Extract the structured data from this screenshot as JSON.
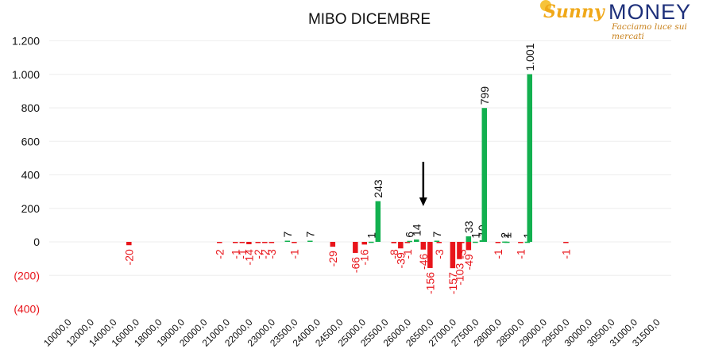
{
  "header": {
    "logo_brand": "Sunny",
    "logo_money": "MONEY",
    "logo_tagline": "Facciamo luce sui mercati"
  },
  "colors": {
    "positive": "#12b04f",
    "negative": "#e8151b",
    "negative_label": "#e8151b",
    "axis_text": "#111111",
    "grid": "#eeeeee"
  },
  "chart_data": {
    "type": "bar",
    "title": "MIBO DICEMBRE",
    "xlabel": "",
    "ylabel": "",
    "ylim": [
      -400,
      1200
    ],
    "yticks": [
      {
        "value": 1200,
        "label": "1.200"
      },
      {
        "value": 1000,
        "label": "1.000"
      },
      {
        "value": 800,
        "label": "800"
      },
      {
        "value": 600,
        "label": "600"
      },
      {
        "value": 400,
        "label": "400"
      },
      {
        "value": 200,
        "label": "200"
      },
      {
        "value": 0,
        "label": "0"
      },
      {
        "value": -200,
        "label": "(200)"
      },
      {
        "value": -400,
        "label": "(400)"
      }
    ],
    "categories": [
      "10000,0",
      "12000,0",
      "14000,0",
      "16000,0",
      "18000,0",
      "19000,0",
      "20000,0",
      "21000,0",
      "22000,0",
      "23000,0",
      "23500,0",
      "24000,0",
      "24500,0",
      "25000,0",
      "25500,0",
      "26000,0",
      "26500,0",
      "27000,0",
      "27500,0",
      "28000,0",
      "28500,0",
      "29000,0",
      "29500,0",
      "30000,0",
      "30500,0",
      "31000,0",
      "31500,0"
    ],
    "grid": true,
    "legend": "none",
    "annotation": "arrow pointing down at 26500,0",
    "series": [
      {
        "color": "negative",
        "values": [
          {
            "cat": 3,
            "slot": 0.45,
            "v": -20,
            "label": "-20"
          },
          {
            "cat": 7,
            "slot": 0.45,
            "v": -2,
            "label": "-2"
          },
          {
            "cat": 8,
            "slot": 0.15,
            "v": -1,
            "label": "-1"
          },
          {
            "cat": 8,
            "slot": 0.45,
            "v": -1,
            "label": "-1"
          },
          {
            "cat": 8,
            "slot": 0.75,
            "v": -14,
            "label": "-14"
          },
          {
            "cat": 9,
            "slot": 0.15,
            "v": -2,
            "label": "-2"
          },
          {
            "cat": 9,
            "slot": 0.45,
            "v": -2,
            "label": "-2"
          },
          {
            "cat": 9,
            "slot": 0.75,
            "v": -3,
            "label": "-3"
          },
          {
            "cat": 10,
            "slot": 0.75,
            "v": -1,
            "label": "-1"
          },
          {
            "cat": 12,
            "slot": 0.45,
            "v": -29,
            "label": "-29"
          },
          {
            "cat": 13,
            "slot": 0.45,
            "v": -66,
            "label": "-66"
          },
          {
            "cat": 13,
            "slot": 0.85,
            "v": -16,
            "label": "-16"
          },
          {
            "cat": 15,
            "slot": 0.15,
            "v": -8,
            "label": "-8"
          },
          {
            "cat": 15,
            "slot": 0.45,
            "v": -39,
            "label": "-39"
          },
          {
            "cat": 15,
            "slot": 0.75,
            "v": -1,
            "label": "-1"
          },
          {
            "cat": 16,
            "slot": 0.45,
            "v": -46,
            "label": "-46"
          },
          {
            "cat": 16,
            "slot": 0.75,
            "v": -156,
            "label": "-156"
          },
          {
            "cat": 17,
            "slot": 0.15,
            "v": -3,
            "label": "-3"
          },
          {
            "cat": 17,
            "slot": 0.75,
            "v": -157,
            "label": "-157"
          },
          {
            "cat": 17,
            "slot": 1.05,
            "v": -103,
            "label": "-103"
          },
          {
            "cat": 18,
            "slot": 0.15,
            "v": -3,
            "label": "-3"
          },
          {
            "cat": 18,
            "slot": 0.45,
            "v": -49,
            "label": "-49"
          },
          {
            "cat": 19,
            "slot": 0.75,
            "v": -1,
            "label": "-1"
          },
          {
            "cat": 20,
            "slot": 0.75,
            "v": -1,
            "label": "-1"
          },
          {
            "cat": 22,
            "slot": 0.75,
            "v": -1,
            "label": "-1"
          }
        ]
      },
      {
        "color": "positive",
        "values": [
          {
            "cat": 10,
            "slot": 0.45,
            "v": 7,
            "label": "7"
          },
          {
            "cat": 11,
            "slot": 0.45,
            "v": 7,
            "label": "7"
          },
          {
            "cat": 14,
            "slot": 0.15,
            "v": 1,
            "label": "1"
          },
          {
            "cat": 14,
            "slot": 0.45,
            "v": 243,
            "label": "243"
          },
          {
            "cat": 15,
            "slot": 0.85,
            "v": 6,
            "label": "6"
          },
          {
            "cat": 16,
            "slot": 0.15,
            "v": 14,
            "label": "14"
          },
          {
            "cat": 16,
            "slot": 1.05,
            "v": 7,
            "label": "7"
          },
          {
            "cat": 17,
            "slot": 1.45,
            "v": 33,
            "label": "33"
          },
          {
            "cat": 18,
            "slot": 0.75,
            "v": 1,
            "label": "1"
          },
          {
            "cat": 18,
            "slot": 1.05,
            "v": 10,
            "label": "10"
          },
          {
            "cat": 19,
            "slot": 0.15,
            "v": 799,
            "label": "799"
          },
          {
            "cat": 19,
            "slot": 1.05,
            "v": 2,
            "label": "2"
          },
          {
            "cat": 20,
            "slot": 0.15,
            "v": 1,
            "label": "1"
          },
          {
            "cat": 20,
            "slot": 1.05,
            "v": 1,
            "label": "1"
          },
          {
            "cat": 21,
            "slot": 0.15,
            "v": 1001,
            "label": "1.001"
          }
        ]
      }
    ]
  }
}
